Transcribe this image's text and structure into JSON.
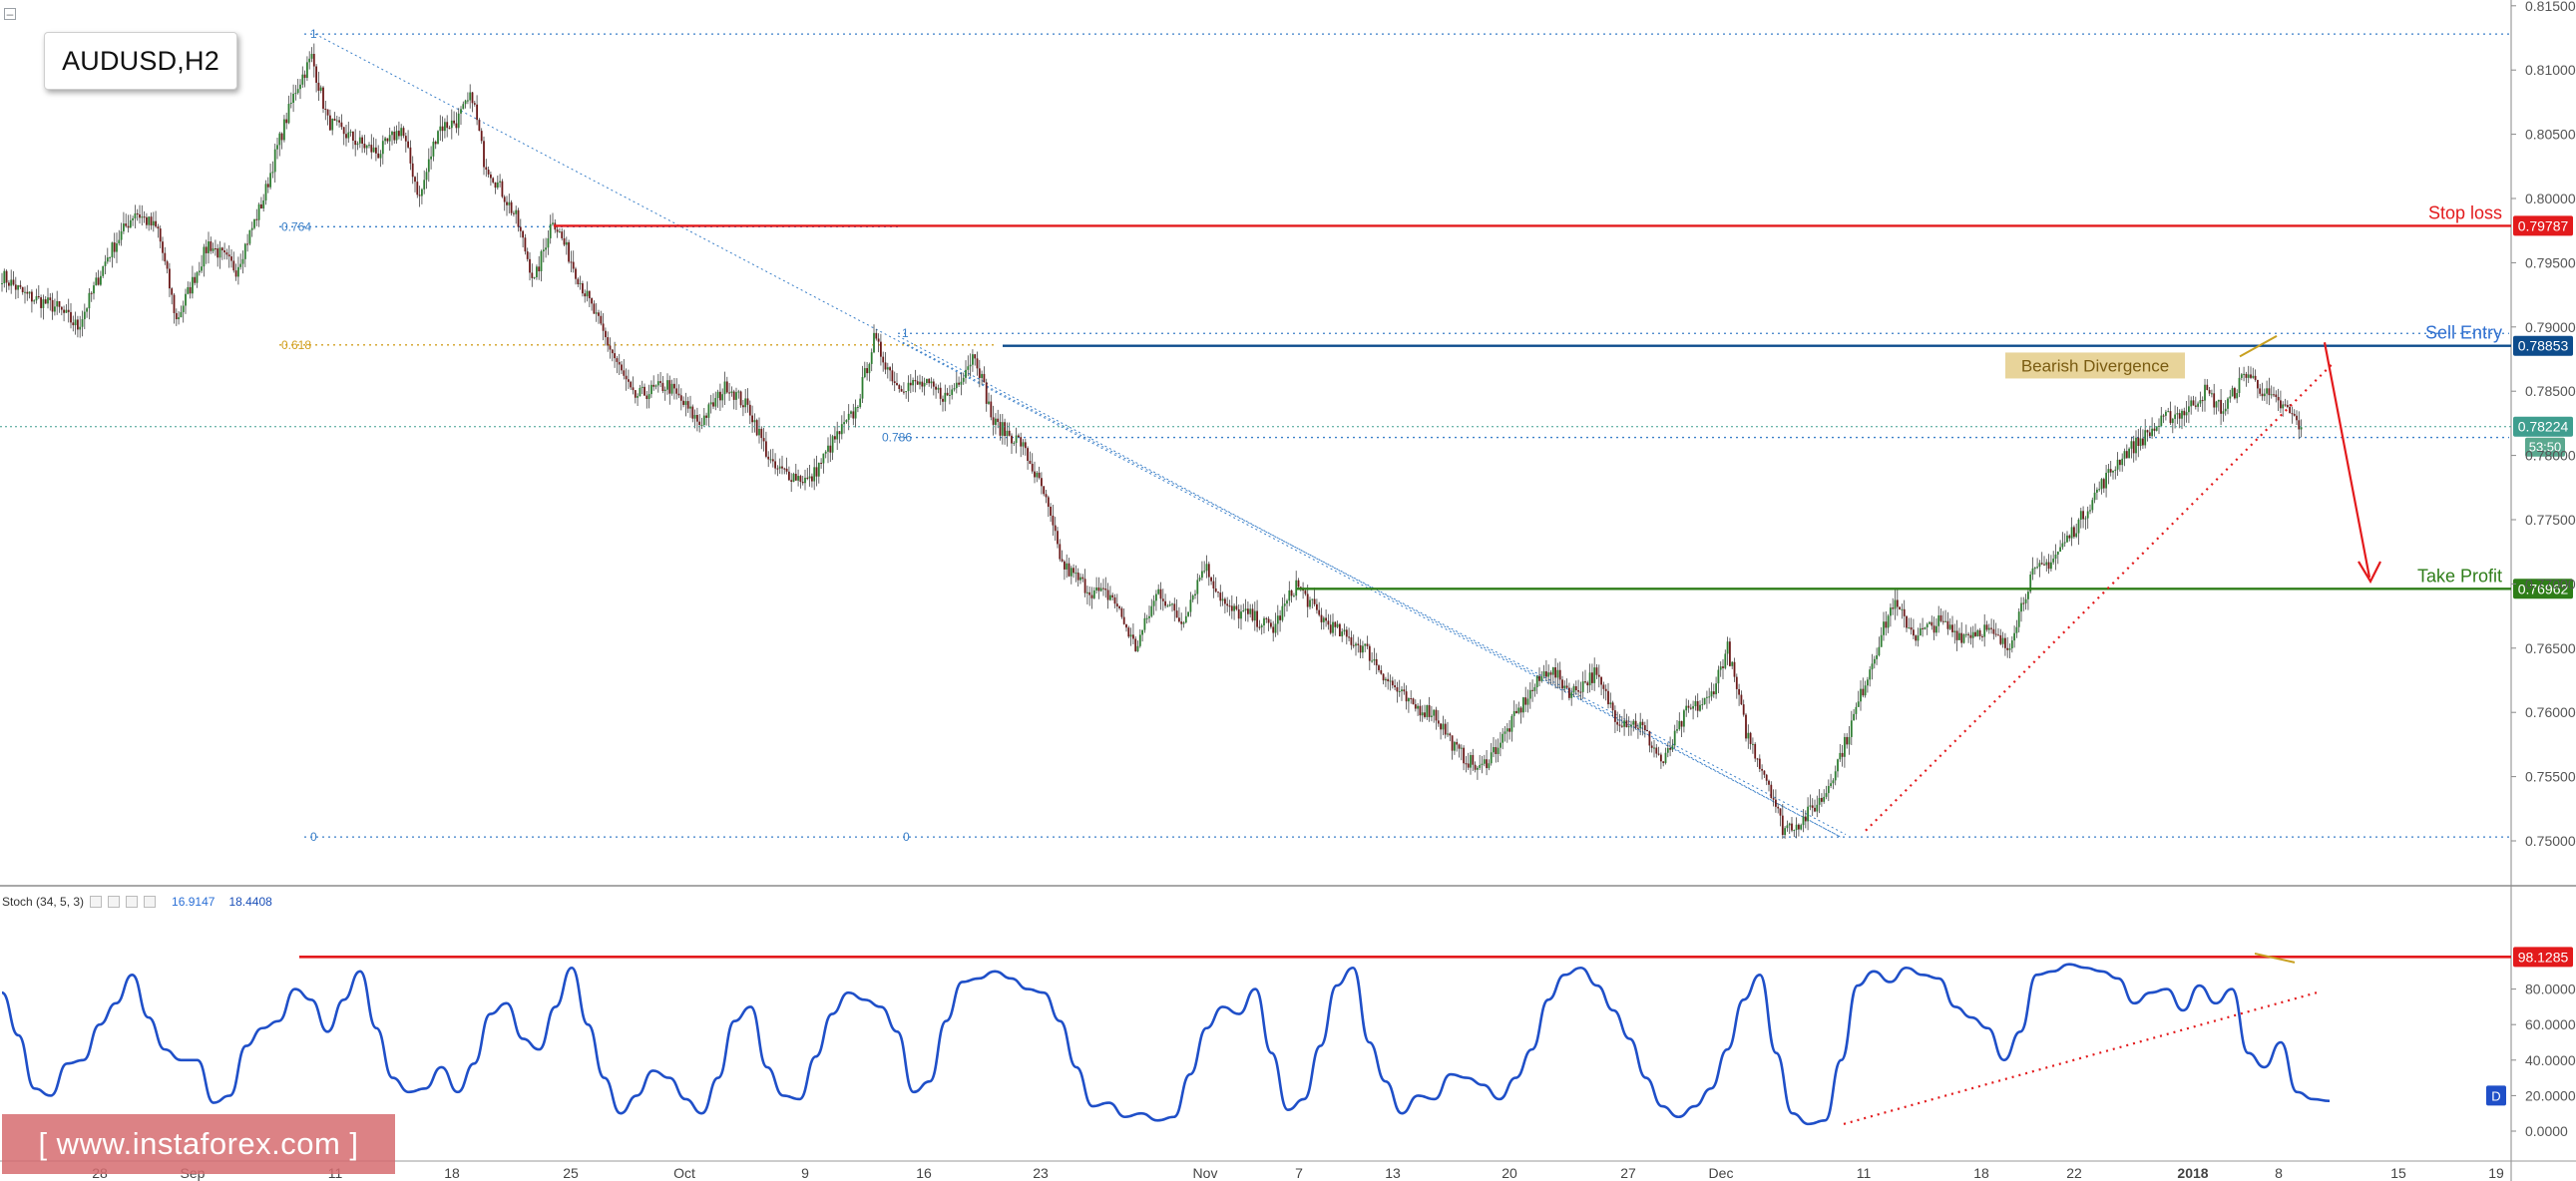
{
  "symbol": "AUDUSD,H2",
  "watermark": "[ www.instaforex.com ]",
  "indicator": {
    "label": "Stoch (34, 5, 3)",
    "value_k": "16.9147",
    "value_d": "18.4408",
    "level_label": "98.1285",
    "level": 98.1285,
    "badge": "D"
  },
  "colors": {
    "stop_loss": "#e31a1c",
    "sell_entry": "#0d4c8c",
    "take_profit": "#2e7d18",
    "price_line": "#3f9e8f",
    "candle_up": "#2e7d32",
    "candle_down": "#6b1a1a",
    "fib": "#3a7fc8",
    "fib_618": "#d2a020",
    "stoch_line": "#1f4fc8",
    "trend_dotted": "#e31a1c",
    "divergence": "#c8a020",
    "annotation_bg": "#e8d49a"
  },
  "chart_data": [
    {
      "type": "candlestick",
      "symbol": "AUDUSD",
      "timeframe": "H2",
      "ylim": [
        0.75,
        0.815
      ],
      "y_ticks": [
        "0.75000",
        "0.75500",
        "0.76000",
        "0.76500",
        "0.77000",
        "0.77500",
        "0.78000",
        "0.78500",
        "0.79000",
        "0.79500",
        "0.80000",
        "0.80500",
        "0.81000",
        "0.81500"
      ],
      "x_ticks": [
        "28",
        "Sep",
        "11",
        "18",
        "25",
        "Oct",
        "9",
        "16",
        "23",
        "Nov",
        "7",
        "13",
        "20",
        "27",
        "Dec",
        "11",
        "18",
        "22",
        "2018",
        "8",
        "15",
        "19"
      ],
      "price_path": [
        [
          0,
          0.794
        ],
        [
          10,
          0.7925
        ],
        [
          24,
          0.7915
        ],
        [
          33,
          0.79
        ],
        [
          46,
          0.7955
        ],
        [
          58,
          0.799
        ],
        [
          68,
          0.7975
        ],
        [
          76,
          0.7905
        ],
        [
          90,
          0.7965
        ],
        [
          102,
          0.7945
        ],
        [
          114,
          0.8
        ],
        [
          120,
          0.804
        ],
        [
          128,
          0.8085
        ],
        [
          135,
          0.811
        ],
        [
          142,
          0.806
        ],
        [
          154,
          0.8045
        ],
        [
          164,
          0.8035
        ],
        [
          174,
          0.8055
        ],
        [
          182,
          0.8
        ],
        [
          190,
          0.8055
        ],
        [
          198,
          0.806
        ],
        [
          205,
          0.808
        ],
        [
          210,
          0.803
        ],
        [
          218,
          0.8005
        ],
        [
          224,
          0.7985
        ],
        [
          232,
          0.7935
        ],
        [
          240,
          0.7985
        ],
        [
          252,
          0.7935
        ],
        [
          262,
          0.7895
        ],
        [
          275,
          0.7845
        ],
        [
          290,
          0.7855
        ],
        [
          304,
          0.7825
        ],
        [
          316,
          0.7855
        ],
        [
          326,
          0.7835
        ],
        [
          336,
          0.779
        ],
        [
          352,
          0.778
        ],
        [
          362,
          0.781
        ],
        [
          372,
          0.7835
        ],
        [
          380,
          0.789
        ],
        [
          390,
          0.7855
        ],
        [
          402,
          0.7855
        ],
        [
          412,
          0.7845
        ],
        [
          424,
          0.788
        ],
        [
          432,
          0.7825
        ],
        [
          444,
          0.781
        ],
        [
          454,
          0.777
        ],
        [
          462,
          0.7715
        ],
        [
          474,
          0.7695
        ],
        [
          484,
          0.769
        ],
        [
          494,
          0.765
        ],
        [
          504,
          0.7695
        ],
        [
          514,
          0.767
        ],
        [
          524,
          0.7715
        ],
        [
          534,
          0.768
        ],
        [
          544,
          0.7675
        ],
        [
          554,
          0.7665
        ],
        [
          564,
          0.77
        ],
        [
          574,
          0.7675
        ],
        [
          584,
          0.766
        ],
        [
          594,
          0.765
        ],
        [
          604,
          0.7625
        ],
        [
          614,
          0.7605
        ],
        [
          624,
          0.76
        ],
        [
          634,
          0.757
        ],
        [
          644,
          0.7555
        ],
        [
          654,
          0.758
        ],
        [
          664,
          0.761
        ],
        [
          674,
          0.7635
        ],
        [
          684,
          0.7615
        ],
        [
          694,
          0.763
        ],
        [
          704,
          0.7595
        ],
        [
          714,
          0.759
        ],
        [
          724,
          0.756
        ],
        [
          734,
          0.76
        ],
        [
          744,
          0.761
        ],
        [
          752,
          0.765
        ],
        [
          760,
          0.7585
        ],
        [
          770,
          0.7545
        ],
        [
          776,
          0.751
        ],
        [
          784,
          0.7515
        ],
        [
          794,
          0.7535
        ],
        [
          804,
          0.758
        ],
        [
          814,
          0.7635
        ],
        [
          824,
          0.7685
        ],
        [
          834,
          0.766
        ],
        [
          844,
          0.767
        ],
        [
          854,
          0.766
        ],
        [
          864,
          0.7665
        ],
        [
          874,
          0.765
        ],
        [
          884,
          0.7705
        ],
        [
          894,
          0.772
        ],
        [
          904,
          0.7745
        ],
        [
          914,
          0.7775
        ],
        [
          924,
          0.78
        ],
        [
          934,
          0.7815
        ],
        [
          944,
          0.783
        ],
        [
          952,
          0.7835
        ],
        [
          960,
          0.785
        ],
        [
          968,
          0.7835
        ],
        [
          978,
          0.7865
        ],
        [
          988,
          0.7845
        ],
        [
          996,
          0.7835
        ],
        [
          1002,
          0.7822
        ]
      ],
      "horizontal_levels": [
        {
          "label": "Stop loss",
          "value": 0.79787,
          "price_label": "0.79787"
        },
        {
          "label": "Sell Entry",
          "value": 0.78853,
          "price_label": "0.78853"
        },
        {
          "label": "Take Profit",
          "value": 0.76962,
          "price_label": "0.76962"
        }
      ],
      "last_price": {
        "value": 0.78224,
        "price_label": "0.78224",
        "countdown": "53:50"
      },
      "fib_levels": [
        {
          "label": "1",
          "value": 0.8128
        },
        {
          "label": "0.764",
          "value": 0.7978
        },
        {
          "label": "0.618",
          "value": 0.7886
        },
        {
          "label": "1",
          "value": 0.7895
        },
        {
          "label": "0.786",
          "value": 0.7814
        },
        {
          "label": "0",
          "value": 0.7503
        },
        {
          "label": "0",
          "value": 0.7503
        }
      ],
      "annotations": [
        "Bearish Divergence"
      ]
    },
    {
      "type": "line",
      "name": "Stoch (34, 5, 3)",
      "ylim": [
        0,
        100
      ],
      "y_ticks": [
        "0.0000",
        "20.0000",
        "40.0000",
        "60.0000",
        "80.0000"
      ],
      "values": [
        78,
        54,
        24,
        20,
        38,
        40,
        60,
        72,
        88,
        64,
        46,
        40,
        40,
        16,
        20,
        48,
        58,
        62,
        80,
        74,
        56,
        74,
        90,
        58,
        30,
        22,
        24,
        36,
        22,
        38,
        66,
        72,
        52,
        46,
        70,
        92,
        60,
        30,
        10,
        20,
        34,
        30,
        18,
        10,
        30,
        62,
        70,
        36,
        20,
        18,
        42,
        66,
        78,
        74,
        70,
        56,
        22,
        28,
        62,
        84,
        86,
        90,
        86,
        80,
        78,
        62,
        36,
        14,
        16,
        8,
        10,
        6,
        8,
        32,
        58,
        70,
        66,
        80,
        44,
        12,
        18,
        48,
        82,
        92,
        50,
        28,
        10,
        20,
        18,
        32,
        30,
        26,
        18,
        30,
        46,
        74,
        88,
        92,
        82,
        68,
        52,
        30,
        14,
        8,
        14,
        24,
        46,
        74,
        88,
        44,
        10,
        4,
        6,
        40,
        82,
        90,
        84,
        92,
        88,
        86,
        70,
        64,
        58,
        40,
        56,
        88,
        90,
        94,
        92,
        90,
        86,
        72,
        78,
        80,
        68,
        82,
        72,
        80,
        44,
        36,
        50,
        22,
        18,
        17
      ],
      "threshold": 98.1285
    }
  ]
}
